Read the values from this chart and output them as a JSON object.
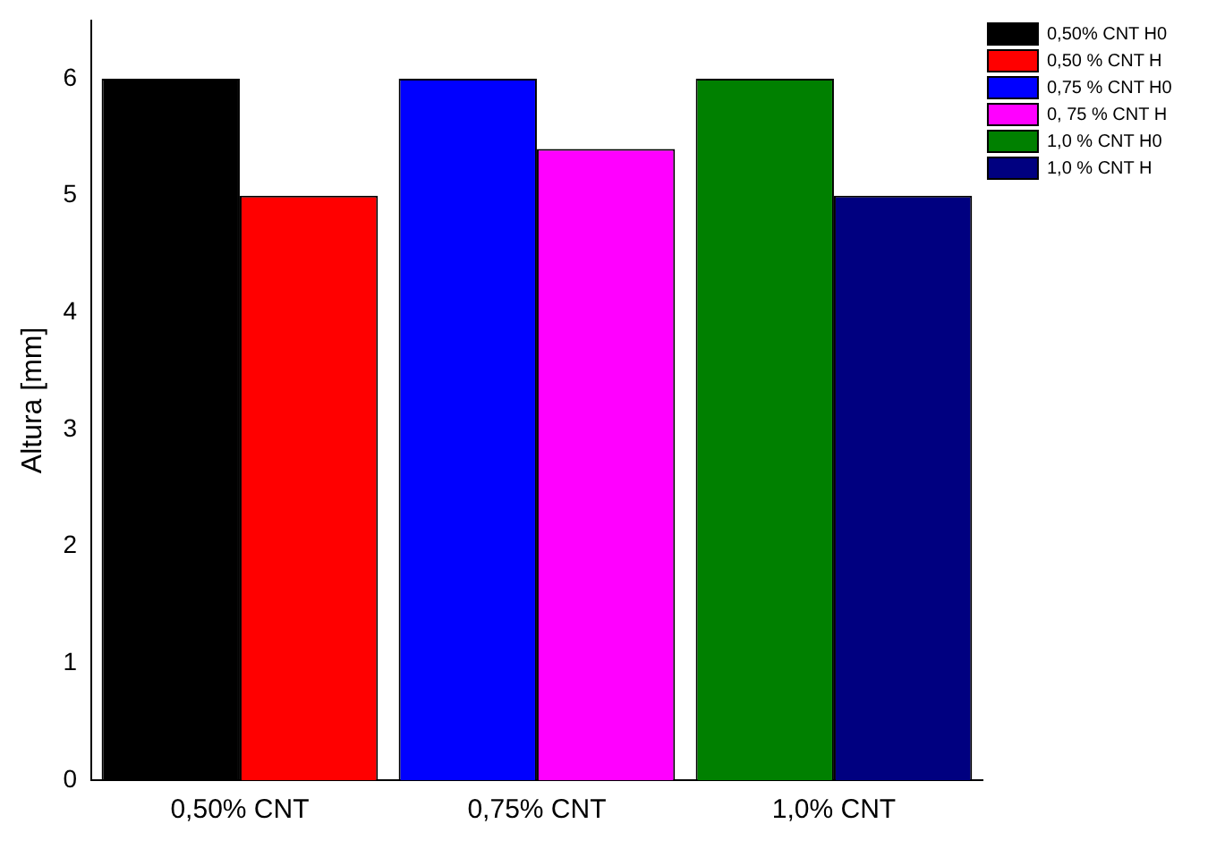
{
  "chart_data": {
    "type": "bar",
    "ylabel": "Altura [mm]",
    "categories": [
      "0,50% CNT",
      "0,75% CNT",
      "1,0% CNT"
    ],
    "series": [
      {
        "name": "0,50% CNT H0",
        "color": "#000000",
        "values": [
          6,
          null,
          null
        ]
      },
      {
        "name": "0,50 % CNT H",
        "color": "#ff0000",
        "values": [
          5,
          null,
          null
        ]
      },
      {
        "name": "0,75 % CNT H0",
        "color": "#0000ff",
        "values": [
          null,
          6,
          null
        ]
      },
      {
        "name": "0, 75 % CNT H",
        "color": "#ff00ff",
        "values": [
          null,
          5.4,
          null
        ]
      },
      {
        "name": "1,0 % CNT H0",
        "color": "#008000",
        "values": [
          null,
          null,
          6
        ]
      },
      {
        "name": "1,0 % CNT H",
        "color": "#000080",
        "values": [
          null,
          null,
          5
        ]
      }
    ],
    "ylim": [
      0,
      6.5
    ],
    "yticks": [
      0,
      1,
      2,
      3,
      4,
      5,
      6
    ],
    "grid": false,
    "legend": "top right"
  }
}
